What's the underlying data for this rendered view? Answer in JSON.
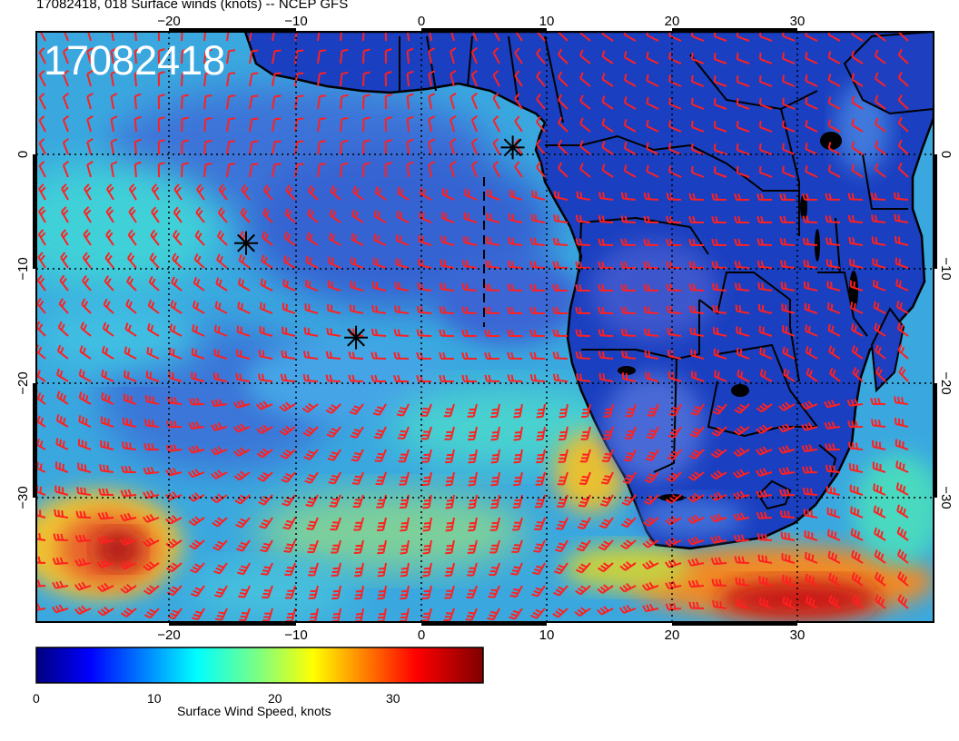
{
  "figure": {
    "title": "17082418, 018 Surface winds (knots) -- NCEP GFS",
    "stamp": "17082418",
    "colorbar_label": "Surface Wind Speed, knots",
    "colorbar_ticks": [
      "0",
      "10",
      "20",
      "30"
    ],
    "lon_ticks": [
      "−20",
      "−10",
      "0",
      "10",
      "20",
      "30"
    ],
    "lat_ticks": [
      "0",
      "−10",
      "−20",
      "−30"
    ]
  },
  "map": {
    "extent_lon": [
      -31,
      40
    ],
    "extent_lat": [
      -40,
      10
    ],
    "projection": "cylindrical",
    "grid_lines": "dotted",
    "markers": [
      {
        "name": "asterisk",
        "lon": 6.7,
        "lat": 0.2
      },
      {
        "name": "asterisk",
        "lon": -14.4,
        "lat": -7.9
      },
      {
        "name": "asterisk",
        "lon": -5.7,
        "lat": -15.9
      }
    ],
    "colormap": "jet",
    "colorbar_range": [
      0,
      38
    ],
    "barb_color": "#ff0000",
    "coast_color": "#000000"
  }
}
